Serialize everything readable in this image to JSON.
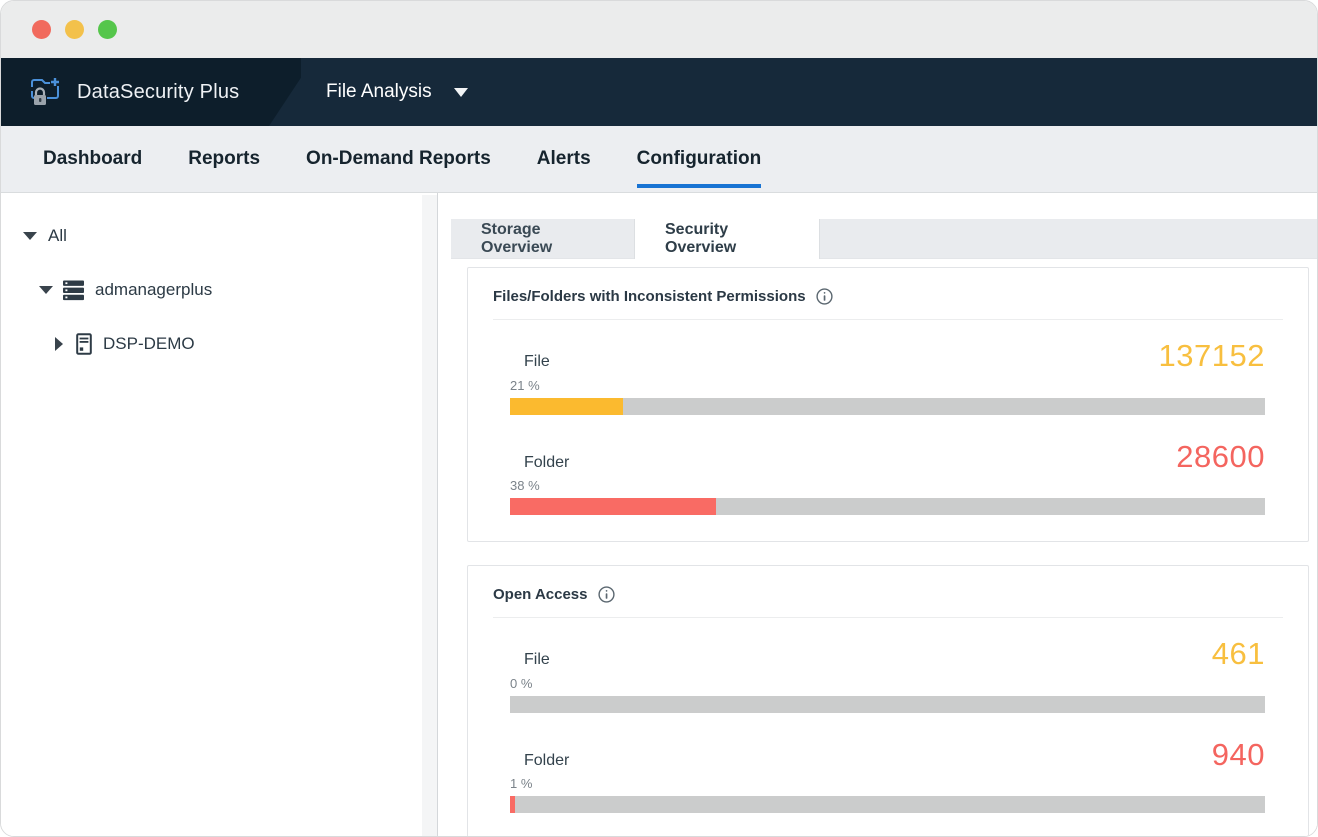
{
  "window": {
    "traffic_lights": {
      "close": "#f16a5d",
      "minimize": "#f3c14b",
      "zoom": "#55c64b"
    }
  },
  "appbar": {
    "brand": "DataSecurity Plus",
    "module": "File Analysis"
  },
  "nav": {
    "items": [
      {
        "label": "Dashboard",
        "active": false
      },
      {
        "label": "Reports",
        "active": false
      },
      {
        "label": "On-Demand Reports",
        "active": false
      },
      {
        "label": "Alerts",
        "active": false
      },
      {
        "label": "Configuration",
        "active": true
      }
    ]
  },
  "sidebar": {
    "tree": [
      {
        "label": "All",
        "expanded": true
      },
      {
        "label": "admanagerplus",
        "expanded": true,
        "icon": "server-stack"
      },
      {
        "label": "DSP-DEMO",
        "expanded": false,
        "icon": "server-tower"
      }
    ]
  },
  "main": {
    "tabs": [
      {
        "label": "Storage Overview",
        "active": false
      },
      {
        "label": "Security Overview",
        "active": true
      }
    ],
    "cards": [
      {
        "title": "Files/Folders with Inconsistent Permissions",
        "rows": [
          {
            "label": "File",
            "value": "137152",
            "percent_label": "21 %",
            "bar_pct": 15,
            "value_color": "#f8bf3f",
            "bar_color": "#fbba2f"
          },
          {
            "label": "Folder",
            "value": "28600",
            "percent_label": "38 %",
            "bar_pct": 27.3,
            "value_color": "#f4655f",
            "bar_color": "#f96b64"
          }
        ]
      },
      {
        "title": "Open Access",
        "rows": [
          {
            "label": "File",
            "value": "461",
            "percent_label": "0 %",
            "bar_pct": 0,
            "value_color": "#f8bf3f",
            "bar_color": "#fbba2f"
          },
          {
            "label": "Folder",
            "value": "940",
            "percent_label": "1 %",
            "bar_pct": 0.7,
            "value_color": "#f4655f",
            "bar_color": "#f96b64"
          }
        ]
      }
    ]
  }
}
